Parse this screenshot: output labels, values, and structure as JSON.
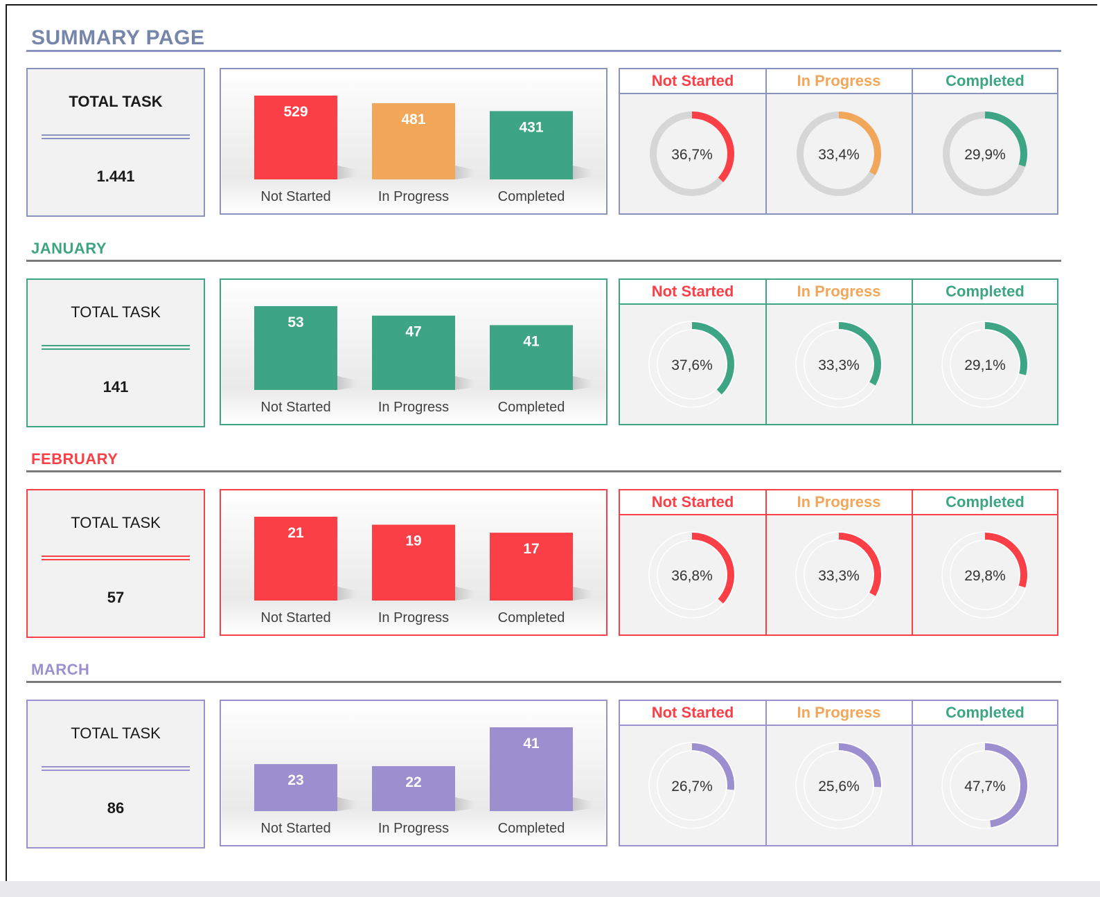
{
  "page_title": "SUMMARY PAGE",
  "colors": {
    "not_started": "#fb3f46",
    "in_progress": "#f2a65a",
    "completed": "#3da583",
    "january": "#3da583",
    "february": "#fb3f46",
    "march": "#9b8fd0",
    "summary_border": "#8a93c0",
    "summary_title": "#7686ab"
  },
  "status_headers": [
    "Not Started",
    "In Progress",
    "Completed"
  ],
  "chart_data": [
    {
      "type": "bar",
      "panel": "summary",
      "total_label": "TOTAL TASK",
      "total": "1.441",
      "categories": [
        "Not Started",
        "In Progress",
        "Completed"
      ],
      "values": [
        529,
        481,
        431
      ],
      "percent_labels": [
        "36,7%",
        "33,4%",
        "29,9%"
      ],
      "percent_values": [
        36.7,
        33.4,
        29.9
      ]
    },
    {
      "type": "bar",
      "panel": "january",
      "section_title": "JANUARY",
      "total_label": "TOTAL TASK",
      "total": "141",
      "categories": [
        "Not Started",
        "In Progress",
        "Completed"
      ],
      "values": [
        53,
        47,
        41
      ],
      "percent_labels": [
        "37,6%",
        "33,3%",
        "29,1%"
      ],
      "percent_values": [
        37.6,
        33.3,
        29.1
      ]
    },
    {
      "type": "bar",
      "panel": "february",
      "section_title": "FEBRUARY",
      "total_label": "TOTAL TASK",
      "total": "57",
      "categories": [
        "Not Started",
        "In Progress",
        "Completed"
      ],
      "values": [
        21,
        19,
        17
      ],
      "percent_labels": [
        "36,8%",
        "33,3%",
        "29,8%"
      ],
      "percent_values": [
        36.8,
        33.3,
        29.8
      ]
    },
    {
      "type": "bar",
      "panel": "march",
      "section_title": "MARCH",
      "total_label": "TOTAL TASK",
      "total": "86",
      "categories": [
        "Not Started",
        "In Progress",
        "Completed"
      ],
      "values": [
        23,
        22,
        41
      ],
      "percent_labels": [
        "26,7%",
        "25,6%",
        "47,7%"
      ],
      "percent_values": [
        26.7,
        25.6,
        47.7
      ]
    }
  ]
}
